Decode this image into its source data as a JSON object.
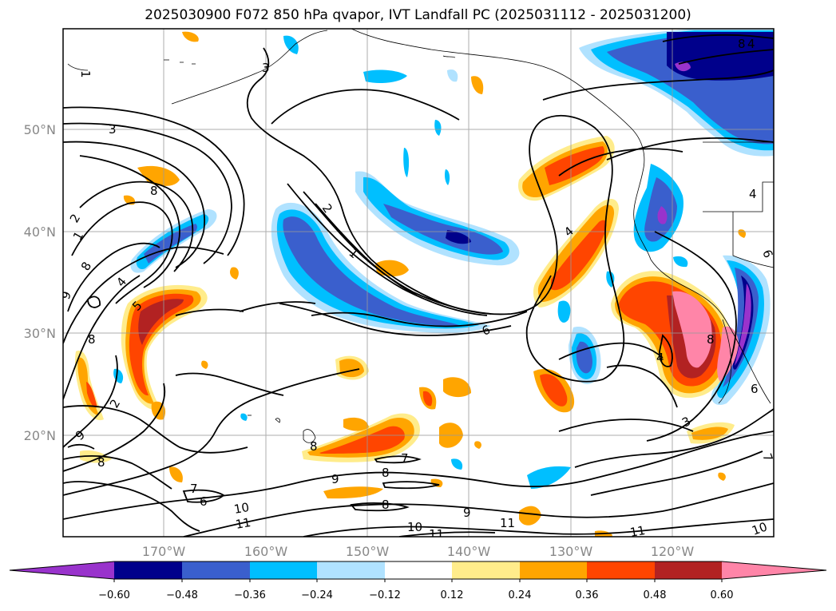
{
  "title": "2025030900 F072 850 hPa qvapor, IVT Landfall PC (2025031112 - 2025031200)",
  "map": {
    "lat_labels": [
      "50°N",
      "40°N",
      "30°N",
      "20°N"
    ],
    "lon_labels": [
      "170°W",
      "160°W",
      "150°W",
      "140°W",
      "130°W",
      "120°W"
    ],
    "grid": true,
    "contour_labels": [
      "1",
      "3",
      "2",
      "1",
      "3",
      "4",
      "8",
      "5",
      "8",
      "8",
      "2",
      "1",
      "4",
      "6",
      "4",
      "6",
      "8",
      "3",
      "2",
      "8",
      "9",
      "8",
      "7",
      "8",
      "7",
      "6",
      "9",
      "10",
      "11",
      "8",
      "9",
      "10",
      "11",
      "11",
      "9",
      "11",
      "10",
      "7",
      "6",
      "4",
      "8",
      "4"
    ]
  },
  "colorbar": {
    "ticks": [
      "−0.60",
      "−0.48",
      "−0.36",
      "−0.24",
      "−0.12",
      "0.12",
      "0.24",
      "0.36",
      "0.48",
      "0.60"
    ],
    "colors": [
      "#9933cc",
      "#00008b",
      "#3a5fcd",
      "#00bfff",
      "#b0e2ff",
      "#ffffff",
      "#ffec8b",
      "#ffa500",
      "#ff4500",
      "#b22222",
      "#ff85a8"
    ]
  }
}
